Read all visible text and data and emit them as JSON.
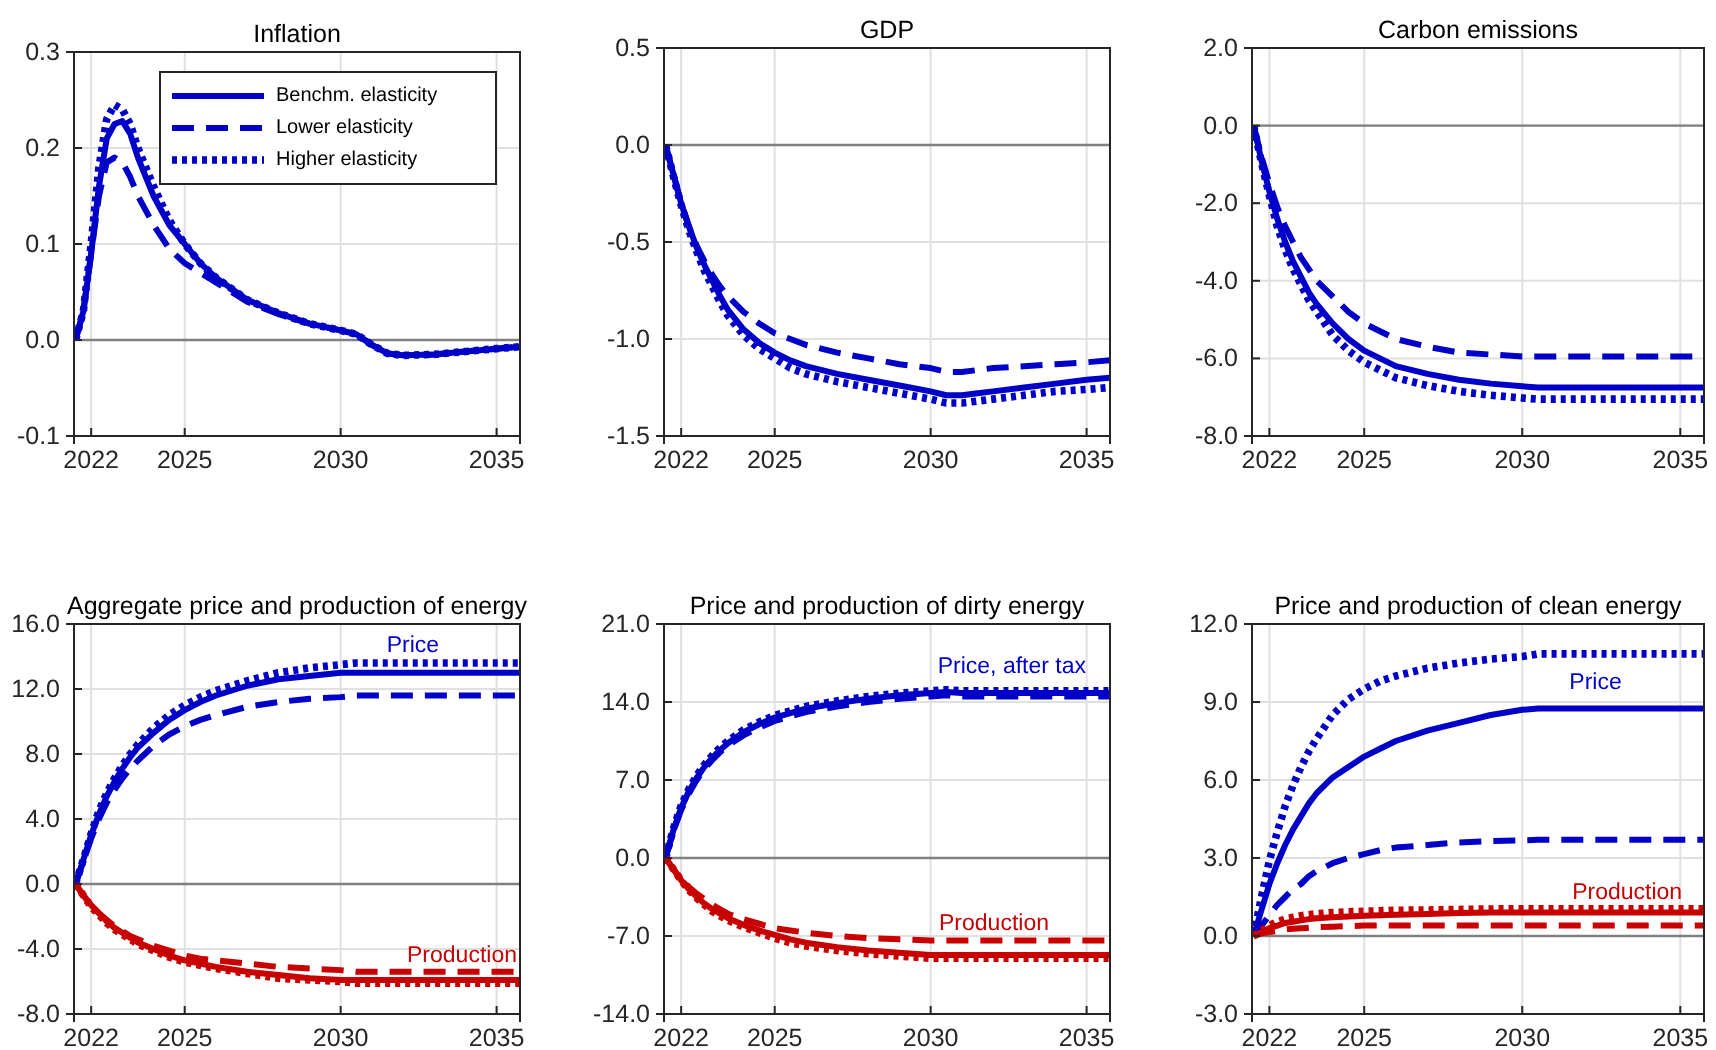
{
  "chart_data": [
    {
      "type": "line",
      "title": "Inflation",
      "x": [
        2021.5,
        2021.75,
        2022,
        2022.25,
        2022.5,
        2022.75,
        2023,
        2023.25,
        2023.5,
        2024,
        2024.5,
        2025,
        2025.5,
        2026,
        2027,
        2028,
        2029,
        2030,
        2030.5,
        2031,
        2031.5,
        2032,
        2033,
        2034,
        2035,
        2035.75
      ],
      "xlim": [
        2021.45,
        2035.75
      ],
      "xticks": [
        2022,
        2025,
        2030,
        2035
      ],
      "ylim": [
        -0.1,
        0.3
      ],
      "yticks": [
        {
          "value": -0.1,
          "label": "-0.1"
        },
        {
          "value": 0,
          "label": "0.0"
        },
        {
          "value": 0.1,
          "label": "0.1"
        },
        {
          "value": 0.2,
          "label": "0.2"
        },
        {
          "value": 0.3,
          "label": "0.3"
        }
      ],
      "grid": true,
      "legend": "top right",
      "ref_lines": [
        {
          "axis": "y",
          "value": 0,
          "color": "#808080"
        }
      ],
      "series": [
        {
          "name": "Benchm. elasticity",
          "color": "#0000c8",
          "line_style": "solid",
          "values": [
            0,
            0.03,
            0.09,
            0.16,
            0.21,
            0.225,
            0.228,
            0.215,
            0.19,
            0.15,
            0.12,
            0.1,
            0.08,
            0.065,
            0.042,
            0.028,
            0.017,
            0.01,
            0.006,
            -0.005,
            -0.014,
            -0.016,
            -0.015,
            -0.012,
            -0.009,
            -0.007
          ]
        },
        {
          "name": "Lower elasticity",
          "color": "#0000c8",
          "line_style": "dashed",
          "values": [
            0,
            0.03,
            0.09,
            0.15,
            0.185,
            0.19,
            0.185,
            0.17,
            0.15,
            0.12,
            0.095,
            0.08,
            0.07,
            0.06,
            0.04,
            0.027,
            0.017,
            0.01,
            0.006,
            -0.005,
            -0.014,
            -0.016,
            -0.015,
            -0.012,
            -0.009,
            -0.007
          ]
        },
        {
          "name": "Higher elasticity",
          "color": "#0000c8",
          "line_style": "dotted",
          "values": [
            0,
            0.03,
            0.1,
            0.18,
            0.23,
            0.245,
            0.24,
            0.225,
            0.2,
            0.16,
            0.125,
            0.1,
            0.08,
            0.065,
            0.042,
            0.028,
            0.017,
            0.01,
            0.006,
            -0.005,
            -0.014,
            -0.016,
            -0.015,
            -0.012,
            -0.009,
            -0.007
          ]
        }
      ]
    },
    {
      "type": "line",
      "title": "GDP",
      "x": [
        2021.5,
        2021.75,
        2022,
        2022.25,
        2022.5,
        2022.75,
        2023,
        2023.25,
        2023.5,
        2024,
        2024.5,
        2025,
        2025.5,
        2026,
        2027,
        2028,
        2029,
        2030,
        2030.5,
        2031,
        2031.5,
        2032,
        2033,
        2034,
        2035,
        2035.75
      ],
      "xlim": [
        2021.45,
        2035.75
      ],
      "xticks": [
        2022,
        2025,
        2030,
        2035
      ],
      "ylim": [
        -1.5,
        0.5
      ],
      "yticks": [
        {
          "value": -1.5,
          "label": "-1.5"
        },
        {
          "value": -1,
          "label": "-1.0"
        },
        {
          "value": -0.5,
          "label": "-0.5"
        },
        {
          "value": 0,
          "label": "0.0"
        },
        {
          "value": 0.5,
          "label": "0.5"
        }
      ],
      "grid": true,
      "ref_lines": [
        {
          "axis": "y",
          "value": 0,
          "color": "#808080"
        }
      ],
      "series": [
        {
          "color": "#0000c8",
          "line_style": "solid",
          "values": [
            0,
            -0.15,
            -0.3,
            -0.42,
            -0.53,
            -0.62,
            -0.7,
            -0.78,
            -0.85,
            -0.95,
            -1.02,
            -1.07,
            -1.11,
            -1.14,
            -1.18,
            -1.21,
            -1.24,
            -1.27,
            -1.29,
            -1.29,
            -1.28,
            -1.27,
            -1.25,
            -1.23,
            -1.21,
            -1.2
          ]
        },
        {
          "color": "#0000c8",
          "line_style": "dashed",
          "values": [
            0,
            -0.15,
            -0.3,
            -0.42,
            -0.52,
            -0.6,
            -0.67,
            -0.73,
            -0.78,
            -0.86,
            -0.92,
            -0.97,
            -1.0,
            -1.03,
            -1.07,
            -1.1,
            -1.13,
            -1.15,
            -1.17,
            -1.17,
            -1.16,
            -1.15,
            -1.14,
            -1.13,
            -1.12,
            -1.11
          ]
        },
        {
          "color": "#0000c8",
          "line_style": "dotted",
          "values": [
            0,
            -0.16,
            -0.31,
            -0.44,
            -0.55,
            -0.65,
            -0.73,
            -0.81,
            -0.88,
            -0.98,
            -1.05,
            -1.1,
            -1.15,
            -1.18,
            -1.22,
            -1.25,
            -1.28,
            -1.31,
            -1.33,
            -1.33,
            -1.32,
            -1.31,
            -1.29,
            -1.27,
            -1.26,
            -1.25
          ]
        }
      ]
    },
    {
      "type": "line",
      "title": "Carbon emissions",
      "x": [
        2021.5,
        2021.75,
        2022,
        2022.25,
        2022.5,
        2022.75,
        2023,
        2023.25,
        2023.5,
        2024,
        2024.5,
        2025,
        2025.5,
        2026,
        2027,
        2028,
        2029,
        2030,
        2030.5,
        2031,
        2031.5,
        2032,
        2033,
        2034,
        2035,
        2035.75
      ],
      "xlim": [
        2021.45,
        2035.75
      ],
      "xticks": [
        2022,
        2025,
        2030,
        2035
      ],
      "ylim": [
        -8,
        2
      ],
      "yticks": [
        {
          "value": -8,
          "label": "-8.0"
        },
        {
          "value": -6,
          "label": "-6.0"
        },
        {
          "value": -4,
          "label": "-4.0"
        },
        {
          "value": -2,
          "label": "-2.0"
        },
        {
          "value": 0,
          "label": "0.0"
        },
        {
          "value": 2,
          "label": "2.0"
        }
      ],
      "grid": true,
      "ref_lines": [
        {
          "axis": "y",
          "value": 0,
          "color": "#808080"
        }
      ],
      "series": [
        {
          "color": "#0000c8",
          "line_style": "solid",
          "values": [
            0,
            -0.9,
            -1.7,
            -2.4,
            -3.0,
            -3.5,
            -3.9,
            -4.3,
            -4.6,
            -5.1,
            -5.5,
            -5.8,
            -6.0,
            -6.2,
            -6.4,
            -6.55,
            -6.65,
            -6.72,
            -6.75,
            -6.75,
            -6.75,
            -6.75,
            -6.75,
            -6.75,
            -6.75,
            -6.75
          ]
        },
        {
          "color": "#0000c8",
          "line_style": "dashed",
          "values": [
            0,
            -0.8,
            -1.5,
            -2.1,
            -2.6,
            -3.0,
            -3.4,
            -3.7,
            -4.0,
            -4.4,
            -4.8,
            -5.1,
            -5.3,
            -5.5,
            -5.7,
            -5.85,
            -5.9,
            -5.95,
            -5.95,
            -5.95,
            -5.95,
            -5.95,
            -5.95,
            -5.95,
            -5.95,
            -5.95
          ]
        },
        {
          "color": "#0000c8",
          "line_style": "dotted",
          "values": [
            0,
            -0.95,
            -1.8,
            -2.6,
            -3.2,
            -3.7,
            -4.1,
            -4.5,
            -4.8,
            -5.4,
            -5.8,
            -6.1,
            -6.3,
            -6.5,
            -6.7,
            -6.85,
            -6.95,
            -7.02,
            -7.05,
            -7.05,
            -7.05,
            -7.05,
            -7.05,
            -7.05,
            -7.05,
            -7.05
          ]
        }
      ]
    },
    {
      "type": "line",
      "title": "Aggregate price and production of energy",
      "x": [
        2021.5,
        2021.75,
        2022,
        2022.25,
        2022.5,
        2022.75,
        2023,
        2023.25,
        2023.5,
        2024,
        2024.5,
        2025,
        2025.5,
        2026,
        2027,
        2028,
        2029,
        2030,
        2030.5,
        2031,
        2031.5,
        2032,
        2033,
        2034,
        2035,
        2035.75
      ],
      "xlim": [
        2021.45,
        2035.75
      ],
      "xticks": [
        2022,
        2025,
        2030,
        2035
      ],
      "ylim": [
        -8,
        16
      ],
      "yticks": [
        {
          "value": -8,
          "label": "-8.0"
        },
        {
          "value": -4,
          "label": "-4.0"
        },
        {
          "value": 0,
          "label": "0.0"
        },
        {
          "value": 4,
          "label": "4.0"
        },
        {
          "value": 8,
          "label": "8.0"
        },
        {
          "value": 12,
          "label": "12.0"
        },
        {
          "value": 16,
          "label": "16.0"
        }
      ],
      "grid": true,
      "ref_lines": [
        {
          "axis": "y",
          "value": 0,
          "color": "#808080"
        }
      ],
      "annotations": [
        "Price",
        "Production"
      ],
      "series": [
        {
          "color": "#0000c8",
          "line_style": "solid",
          "values": [
            0,
            1.5,
            3,
            4.3,
            5.4,
            6.3,
            7.1,
            7.8,
            8.4,
            9.3,
            10.1,
            10.7,
            11.2,
            11.6,
            12.2,
            12.6,
            12.8,
            13.0,
            13.0,
            13.0,
            13.0,
            13.0,
            13.0,
            13.0,
            13.0,
            13.0
          ]
        },
        {
          "color": "#0000c8",
          "line_style": "dashed",
          "values": [
            0,
            1.4,
            2.8,
            4.0,
            5.0,
            5.8,
            6.5,
            7.1,
            7.6,
            8.5,
            9.2,
            9.7,
            10.1,
            10.4,
            10.9,
            11.2,
            11.4,
            11.5,
            11.6,
            11.6,
            11.6,
            11.6,
            11.6,
            11.6,
            11.6,
            11.6
          ]
        },
        {
          "color": "#0000c8",
          "line_style": "dotted",
          "values": [
            0,
            1.5,
            3.1,
            4.5,
            5.6,
            6.5,
            7.3,
            8.0,
            8.6,
            9.6,
            10.4,
            11.0,
            11.5,
            11.9,
            12.5,
            13.0,
            13.3,
            13.5,
            13.6,
            13.6,
            13.6,
            13.6,
            13.6,
            13.6,
            13.6,
            13.6
          ]
        },
        {
          "color": "#c80000",
          "line_style": "solid",
          "values": [
            0,
            -0.7,
            -1.3,
            -1.8,
            -2.3,
            -2.7,
            -3.0,
            -3.3,
            -3.6,
            -4.0,
            -4.4,
            -4.7,
            -4.9,
            -5.1,
            -5.4,
            -5.6,
            -5.8,
            -5.9,
            -5.9,
            -5.9,
            -5.9,
            -5.9,
            -5.9,
            -5.9,
            -5.9,
            -5.9
          ]
        },
        {
          "color": "#c80000",
          "line_style": "dashed",
          "values": [
            0,
            -0.7,
            -1.3,
            -1.8,
            -2.2,
            -2.6,
            -2.9,
            -3.2,
            -3.4,
            -3.8,
            -4.1,
            -4.4,
            -4.6,
            -4.7,
            -4.9,
            -5.1,
            -5.2,
            -5.3,
            -5.4,
            -5.4,
            -5.4,
            -5.4,
            -5.4,
            -5.4,
            -5.4,
            -5.4
          ]
        },
        {
          "color": "#c80000",
          "line_style": "dotted",
          "values": [
            0,
            -0.7,
            -1.4,
            -1.9,
            -2.4,
            -2.8,
            -3.1,
            -3.4,
            -3.7,
            -4.1,
            -4.5,
            -4.8,
            -5.0,
            -5.2,
            -5.5,
            -5.8,
            -5.9,
            -6.0,
            -6.1,
            -6.1,
            -6.1,
            -6.1,
            -6.1,
            -6.1,
            -6.1,
            -6.1
          ]
        }
      ]
    },
    {
      "type": "line",
      "title": "Price and production of dirty energy",
      "x": [
        2021.5,
        2021.75,
        2022,
        2022.25,
        2022.5,
        2022.75,
        2023,
        2023.25,
        2023.5,
        2024,
        2024.5,
        2025,
        2025.5,
        2026,
        2027,
        2028,
        2029,
        2030,
        2030.5,
        2031,
        2031.5,
        2032,
        2033,
        2034,
        2035,
        2035.75
      ],
      "xlim": [
        2021.45,
        2035.75
      ],
      "xticks": [
        2022,
        2025,
        2030,
        2035
      ],
      "ylim": [
        -14,
        21
      ],
      "yticks": [
        {
          "value": -14,
          "label": "-14.0"
        },
        {
          "value": -7,
          "label": "-7.0"
        },
        {
          "value": 0,
          "label": "0.0"
        },
        {
          "value": 7,
          "label": "7.0"
        },
        {
          "value": 14,
          "label": "14.0"
        },
        {
          "value": 21,
          "label": "21.0"
        }
      ],
      "grid": true,
      "ref_lines": [
        {
          "axis": "y",
          "value": 0,
          "color": "#808080"
        }
      ],
      "annotations": [
        "Price, after tax",
        "Production"
      ],
      "series": [
        {
          "color": "#0000c8",
          "line_style": "solid",
          "values": [
            0,
            2.5,
            4.5,
            6.0,
            7.2,
            8.2,
            9.0,
            9.7,
            10.3,
            11.3,
            12.0,
            12.6,
            13.0,
            13.4,
            13.9,
            14.3,
            14.6,
            14.8,
            14.9,
            14.8,
            14.8,
            14.8,
            14.8,
            14.8,
            14.8,
            14.8
          ]
        },
        {
          "color": "#0000c8",
          "line_style": "dashed",
          "values": [
            0,
            2.4,
            4.3,
            5.8,
            7.0,
            8.0,
            8.8,
            9.5,
            10.1,
            11.0,
            11.7,
            12.3,
            12.7,
            13.1,
            13.6,
            14.0,
            14.3,
            14.5,
            14.6,
            14.5,
            14.5,
            14.5,
            14.5,
            14.5,
            14.5,
            14.5
          ]
        },
        {
          "color": "#0000c8",
          "line_style": "dotted",
          "values": [
            0,
            2.6,
            4.7,
            6.2,
            7.4,
            8.4,
            9.2,
            9.9,
            10.5,
            11.5,
            12.2,
            12.8,
            13.2,
            13.6,
            14.1,
            14.5,
            14.8,
            15.0,
            15.1,
            15.0,
            15.0,
            15.0,
            15.0,
            15.0,
            15.0,
            15.0
          ]
        },
        {
          "color": "#c80000",
          "line_style": "solid",
          "values": [
            0,
            -1.0,
            -2.0,
            -2.8,
            -3.5,
            -4.1,
            -4.6,
            -5.0,
            -5.4,
            -6.0,
            -6.5,
            -6.9,
            -7.3,
            -7.6,
            -8.0,
            -8.3,
            -8.5,
            -8.7,
            -8.7,
            -8.7,
            -8.7,
            -8.7,
            -8.7,
            -8.7,
            -8.7,
            -8.7
          ]
        },
        {
          "color": "#c80000",
          "line_style": "dashed",
          "values": [
            0,
            -1.0,
            -1.9,
            -2.6,
            -3.2,
            -3.7,
            -4.2,
            -4.6,
            -5.0,
            -5.5,
            -5.9,
            -6.3,
            -6.5,
            -6.7,
            -7.0,
            -7.2,
            -7.3,
            -7.4,
            -7.4,
            -7.4,
            -7.4,
            -7.4,
            -7.4,
            -7.4,
            -7.4,
            -7.4
          ]
        },
        {
          "color": "#c80000",
          "line_style": "dotted",
          "values": [
            0,
            -1.0,
            -2.0,
            -2.9,
            -3.6,
            -4.2,
            -4.8,
            -5.2,
            -5.6,
            -6.2,
            -6.7,
            -7.2,
            -7.6,
            -7.9,
            -8.3,
            -8.6,
            -8.8,
            -9.0,
            -9.0,
            -9.0,
            -9.0,
            -9.0,
            -9.0,
            -9.0,
            -9.0,
            -9.0
          ]
        }
      ]
    },
    {
      "type": "line",
      "title": "Price and production of clean energy",
      "x": [
        2021.5,
        2021.75,
        2022,
        2022.25,
        2022.5,
        2022.75,
        2023,
        2023.25,
        2023.5,
        2024,
        2024.5,
        2025,
        2025.5,
        2026,
        2027,
        2028,
        2029,
        2030,
        2030.5,
        2031,
        2031.5,
        2032,
        2033,
        2034,
        2035,
        2035.75
      ],
      "xlim": [
        2021.45,
        2035.75
      ],
      "xticks": [
        2022,
        2025,
        2030,
        2035
      ],
      "ylim": [
        -3,
        12
      ],
      "yticks": [
        {
          "value": -3,
          "label": "-3.0"
        },
        {
          "value": 0,
          "label": "0.0"
        },
        {
          "value": 3,
          "label": "3.0"
        },
        {
          "value": 6,
          "label": "6.0"
        },
        {
          "value": 9,
          "label": "9.0"
        },
        {
          "value": 12,
          "label": "12.0"
        }
      ],
      "grid": true,
      "ref_lines": [
        {
          "axis": "y",
          "value": 0,
          "color": "#808080"
        }
      ],
      "annotations": [
        "Price",
        "Production"
      ],
      "series": [
        {
          "color": "#0000c8",
          "line_style": "solid",
          "values": [
            0,
            1.0,
            2.0,
            2.8,
            3.5,
            4.1,
            4.6,
            5.1,
            5.5,
            6.1,
            6.5,
            6.9,
            7.2,
            7.5,
            7.9,
            8.2,
            8.5,
            8.7,
            8.75,
            8.75,
            8.75,
            8.75,
            8.75,
            8.75,
            8.75,
            8.75
          ]
        },
        {
          "color": "#0000c8",
          "line_style": "dashed",
          "values": [
            0,
            0.4,
            0.8,
            1.2,
            1.5,
            1.8,
            2.0,
            2.3,
            2.5,
            2.8,
            3.0,
            3.15,
            3.3,
            3.4,
            3.5,
            3.6,
            3.65,
            3.68,
            3.7,
            3.7,
            3.7,
            3.7,
            3.7,
            3.7,
            3.7,
            3.7
          ]
        },
        {
          "color": "#0000c8",
          "line_style": "dotted",
          "values": [
            0,
            1.5,
            2.9,
            4.0,
            5.0,
            5.8,
            6.5,
            7.1,
            7.6,
            8.5,
            9.1,
            9.5,
            9.8,
            10.0,
            10.3,
            10.5,
            10.65,
            10.75,
            10.85,
            10.85,
            10.85,
            10.85,
            10.85,
            10.85,
            10.85,
            10.85
          ]
        },
        {
          "color": "#c80000",
          "line_style": "solid",
          "values": [
            0,
            0.15,
            0.3,
            0.4,
            0.5,
            0.55,
            0.6,
            0.65,
            0.68,
            0.72,
            0.75,
            0.78,
            0.8,
            0.82,
            0.85,
            0.88,
            0.9,
            0.9,
            0.9,
            0.9,
            0.9,
            0.9,
            0.9,
            0.9,
            0.9,
            0.9
          ]
        },
        {
          "color": "#c80000",
          "line_style": "dashed",
          "values": [
            0,
            0.1,
            0.15,
            0.2,
            0.25,
            0.28,
            0.3,
            0.32,
            0.34,
            0.36,
            0.38,
            0.4,
            0.4,
            0.4,
            0.4,
            0.4,
            0.4,
            0.4,
            0.4,
            0.4,
            0.4,
            0.4,
            0.4,
            0.4,
            0.4,
            0.4
          ]
        },
        {
          "color": "#c80000",
          "line_style": "dotted",
          "values": [
            0,
            0.2,
            0.4,
            0.55,
            0.65,
            0.72,
            0.78,
            0.82,
            0.86,
            0.9,
            0.93,
            0.95,
            0.97,
            0.99,
            1.0,
            1.02,
            1.04,
            1.05,
            1.05,
            1.05,
            1.05,
            1.05,
            1.05,
            1.05,
            1.05,
            1.05
          ]
        }
      ]
    }
  ]
}
